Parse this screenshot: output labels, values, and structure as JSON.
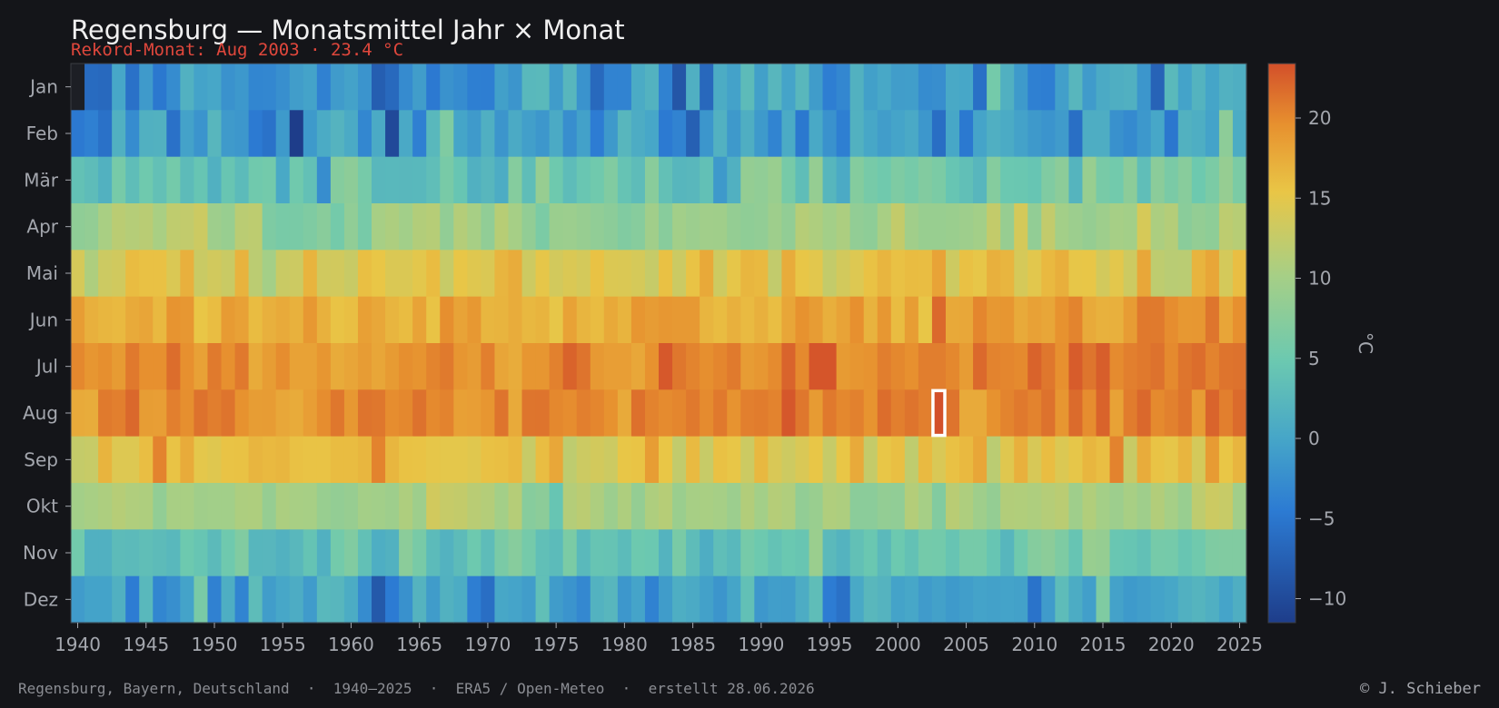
{
  "chart_data": {
    "type": "heatmap",
    "title": "Regensburg — Monatsmittel Jahr × Monat",
    "subtitle": "Rekord-Monat: Aug 2003 · 23.4 °C",
    "x_tick_labels": [
      "1940",
      "1945",
      "1950",
      "1955",
      "1960",
      "1965",
      "1970",
      "1975",
      "1980",
      "1985",
      "1990",
      "1995",
      "2000",
      "2005",
      "2010",
      "2015",
      "2020",
      "2025"
    ],
    "x_tick_years": [
      1940,
      1945,
      1950,
      1955,
      1960,
      1965,
      1970,
      1975,
      1980,
      1985,
      1990,
      1995,
      2000,
      2005,
      2010,
      2015,
      2020,
      2025
    ],
    "xlim": [
      1940,
      2025
    ],
    "years": [
      1940,
      1941,
      1942,
      1943,
      1944,
      1945,
      1946,
      1947,
      1948,
      1949,
      1950,
      1951,
      1952,
      1953,
      1954,
      1955,
      1956,
      1957,
      1958,
      1959,
      1960,
      1961,
      1962,
      1963,
      1964,
      1965,
      1966,
      1967,
      1968,
      1969,
      1970,
      1971,
      1972,
      1973,
      1974,
      1975,
      1976,
      1977,
      1978,
      1979,
      1980,
      1981,
      1982,
      1983,
      1984,
      1985,
      1986,
      1987,
      1988,
      1989,
      1990,
      1991,
      1992,
      1993,
      1994,
      1995,
      1996,
      1997,
      1998,
      1999,
      2000,
      2001,
      2002,
      2003,
      2004,
      2005,
      2006,
      2007,
      2008,
      2009,
      2010,
      2011,
      2012,
      2013,
      2014,
      2015,
      2016,
      2017,
      2018,
      2019,
      2020,
      2021,
      2022,
      2023,
      2024,
      2025
    ],
    "months": [
      "Jan",
      "Feb",
      "Mär",
      "Apr",
      "Mai",
      "Jun",
      "Jul",
      "Aug",
      "Sep",
      "Okt",
      "Nov",
      "Dez"
    ],
    "colorbar": {
      "min": -11.5,
      "max": 23.4,
      "ticks": [
        20,
        15,
        10,
        5,
        0,
        -5,
        -10
      ],
      "tick_labels": [
        "20",
        "15",
        "10",
        "5",
        "0",
        "−5",
        "−10"
      ],
      "label": "°C"
    },
    "highlight": {
      "year": 2003,
      "month": "Aug",
      "value": 23.4
    },
    "values": [
      [
        null,
        -6.3,
        -6.5,
        0.1,
        -5.6,
        -1.2,
        -4.9,
        -2.7,
        1.5,
        -0.3,
        0.1,
        -2.1,
        -1.5,
        -3.4,
        -3.3,
        -2.4,
        -0.9,
        -0.3,
        -3.9,
        -1.1,
        -0.4,
        -1.9,
        -7.8,
        -6.6,
        -2.8,
        -0.9,
        -4.7,
        -2.1,
        -2.7,
        -4.1,
        -4.2,
        -0.6,
        -1.8,
        2.5,
        2.6,
        -1.0,
        2.3,
        -2.0,
        -6.6,
        -3.7,
        -3.7,
        0.7,
        1.7,
        -3.8,
        -8.7,
        1.3,
        -6.7,
        0.8,
        -0.4,
        3.0,
        -0.6,
        2.3,
        -0.2,
        2.4,
        -1.0,
        -4.2,
        -3.3,
        1.6,
        -0.6,
        0.3,
        -0.9,
        -0.8,
        -2.7,
        -2.5,
        0.4,
        0.1,
        -5.8,
        5.6,
        1.4,
        -1.3,
        -4.0,
        -4.2,
        -0.7,
        2.3,
        -1.1,
        0.6,
        1.2,
        1.4,
        -1.7,
        -7.2,
        2.6,
        -0.3,
        1.8,
        -0.1,
        1.5,
        1.2
      ],
      [
        -4.7,
        -4.0,
        -5.6,
        1.4,
        -2.7,
        1.4,
        1.6,
        -5.6,
        -0.4,
        -1.9,
        2.3,
        -1.2,
        -1.6,
        -4.6,
        -5.5,
        -1.3,
        -11.5,
        -1.3,
        0.7,
        1.9,
        0.6,
        -3.3,
        0.6,
        -10.1,
        0.5,
        -4.0,
        2.5,
        6.6,
        -0.1,
        -1.2,
        1.3,
        -1.8,
        0.6,
        -0.7,
        -1.6,
        0.6,
        -2.5,
        -0.5,
        -4.4,
        -1.4,
        2.3,
        0.9,
        0.1,
        -4.6,
        -3.7,
        -7.6,
        -1.7,
        1.5,
        -1.4,
        1.2,
        -1.3,
        -3.6,
        0.7,
        -4.9,
        0.4,
        -2.1,
        -4.1,
        1.6,
        0.2,
        -0.9,
        -0.2,
        0.5,
        -1.6,
        -6.0,
        0.2,
        -4.8,
        -0.2,
        1.3,
        0.7,
        -0.4,
        -1.4,
        -1.9,
        -1.1,
        -5.9,
        1.0,
        1.0,
        -2.2,
        -2.9,
        -1.5,
        0.1,
        -5.0,
        1.6,
        1.1,
        -0.3,
        7.9,
        0.8
      ],
      [
        3.8,
        3.1,
        1.6,
        5.9,
        3.2,
        5.2,
        3.7,
        5.6,
        3.0,
        4.3,
        1.4,
        4.4,
        2.9,
        5.3,
        5.5,
        0.4,
        5.3,
        3.7,
        -2.6,
        7.2,
        7.9,
        5.8,
        2.4,
        2.5,
        2.4,
        2.5,
        3.3,
        6.0,
        4.3,
        1.4,
        2.3,
        0.9,
        7.2,
        3.2,
        8.8,
        5.1,
        3.1,
        4.5,
        5.3,
        6.8,
        4.1,
        3.1,
        7.5,
        3.7,
        2.2,
        2.4,
        3.6,
        -1.4,
        1.4,
        8.5,
        8.2,
        9.0,
        5.9,
        3.2,
        8.6,
        2.2,
        0.6,
        7.1,
        5.9,
        5.3,
        6.5,
        5.8,
        6.9,
        6.3,
        4.3,
        3.5,
        2.3,
        7.2,
        4.8,
        4.6,
        4.3,
        6.7,
        7.8,
        2.0,
        8.9,
        6.0,
        5.4,
        7.8,
        3.3,
        7.7,
        6.2,
        7.4,
        5.0,
        6.3,
        8.7,
        6.3
      ],
      [
        8.1,
        8.4,
        10.4,
        11.7,
        11.3,
        11.6,
        10.4,
        12.1,
        12.3,
        13.1,
        9.4,
        8.9,
        11.7,
        11.9,
        6.5,
        6.0,
        6.1,
        6.6,
        7.5,
        5.6,
        8.2,
        5.9,
        10.2,
        10.7,
        9.8,
        11.1,
        11.4,
        8.3,
        11.2,
        10.2,
        8.2,
        11.5,
        10.1,
        8.3,
        6.3,
        9.1,
        9.2,
        8.8,
        8.2,
        7.8,
        6.8,
        7.3,
        9.7,
        7.4,
        9.8,
        9.2,
        9.7,
        9.6,
        8.5,
        8.1,
        8.3,
        9.4,
        8.3,
        11.4,
        10.8,
        9.9,
        10.6,
        8.3,
        8.0,
        10.3,
        12.4,
        9.7,
        8.9,
        8.9,
        9.1,
        9.4,
        9.9,
        12.4,
        8.8,
        13.7,
        8.3,
        12.3,
        9.9,
        9.2,
        8.6,
        9.4,
        10.1,
        9.9,
        13.9,
        10.6,
        11.2,
        7.6,
        8.4,
        8.0,
        11.9,
        11.5
      ],
      [
        13.8,
        10.8,
        13.1,
        13.4,
        16.2,
        15.8,
        15.8,
        14.2,
        17.1,
        12.9,
        13.5,
        12.9,
        16.9,
        11.8,
        10.0,
        12.9,
        13.1,
        16.8,
        13.4,
        13.5,
        12.8,
        15.9,
        15.4,
        14.2,
        14.2,
        14.9,
        16.2,
        12.7,
        15.3,
        14.6,
        14.2,
        16.7,
        17.4,
        13.2,
        15.1,
        13.6,
        14.2,
        13.7,
        15.7,
        14.3,
        14.2,
        13.8,
        12.6,
        15.8,
        13.0,
        15.6,
        17.7,
        13.2,
        15.1,
        16.6,
        16.4,
        12.3,
        17.4,
        15.3,
        14.8,
        12.4,
        13.6,
        14.4,
        15.7,
        16.7,
        15.8,
        16.2,
        16.1,
        18.1,
        13.2,
        15.8,
        15.2,
        17.1,
        16.7,
        13.8,
        14.8,
        16.4,
        17.2,
        15.2,
        15.3,
        13.6,
        14.9,
        13.2,
        17.8,
        12.0,
        11.6,
        11.7,
        16.8,
        17.9,
        13.7,
        16.0
      ],
      [
        18.6,
        17.1,
        16.6,
        16.4,
        17.6,
        18.0,
        16.4,
        19.3,
        19.1,
        15.4,
        16.1,
        18.8,
        18.3,
        16.2,
        17.1,
        17.6,
        17.0,
        19.0,
        17.0,
        15.6,
        15.9,
        18.4,
        17.8,
        16.7,
        16.2,
        18.1,
        15.6,
        19.7,
        18.1,
        19.0,
        16.6,
        16.8,
        17.4,
        16.5,
        16.8,
        15.2,
        18.2,
        16.7,
        16.2,
        17.7,
        16.8,
        19.2,
        18.7,
        19.1,
        18.9,
        18.9,
        16.7,
        16.2,
        17.1,
        16.3,
        17.1,
        16.0,
        17.9,
        19.5,
        18.7,
        17.2,
        18.1,
        19.6,
        16.9,
        19.1,
        16.2,
        18.6,
        15.3,
        21.9,
        17.7,
        17.8,
        20.2,
        19.0,
        19.2,
        17.6,
        18.3,
        17.9,
        19.5,
        20.3,
        17.6,
        17.0,
        17.1,
        18.7,
        21.0,
        20.9,
        19.8,
        19.0,
        19.1,
        21.2,
        18.0,
        19.6
      ],
      [
        20.1,
        19.2,
        19.7,
        18.8,
        21.0,
        19.6,
        19.6,
        21.7,
        19.6,
        18.3,
        20.9,
        19.6,
        21.0,
        17.5,
        18.6,
        19.8,
        18.2,
        18.2,
        19.2,
        17.5,
        18.0,
        18.7,
        17.9,
        18.8,
        19.7,
        19.3,
        20.3,
        20.9,
        19.2,
        18.7,
        20.6,
        18.0,
        17.4,
        19.2,
        19.2,
        20.5,
        22.3,
        21.3,
        18.9,
        18.5,
        18.5,
        17.8,
        19.5,
        22.9,
        21.1,
        20.3,
        19.7,
        20.2,
        20.9,
        18.7,
        19.1,
        19.9,
        22.2,
        20.0,
        23.1,
        23.1,
        18.8,
        19.2,
        19.4,
        20.7,
        20.1,
        19.6,
        20.7,
        20.7,
        20.1,
        18.7,
        21.9,
        20.4,
        20.2,
        20.0,
        22.3,
        21.1,
        19.6,
        22.7,
        21.2,
        22.6,
        19.9,
        20.6,
        21.0,
        21.4,
        20.0,
        21.2,
        21.7,
        20.4,
        21.3,
        21.4
      ],
      [
        17.6,
        17.4,
        20.9,
        20.6,
        22.0,
        18.6,
        18.5,
        20.6,
        19.7,
        21.4,
        20.7,
        21.3,
        19.5,
        18.6,
        18.7,
        17.8,
        17.5,
        18.5,
        19.8,
        21.1,
        19.0,
        21.3,
        21.1,
        19.8,
        20.1,
        21.4,
        20.0,
        20.4,
        18.4,
        18.5,
        19.2,
        21.3,
        17.6,
        21.2,
        21.3,
        20.1,
        19.8,
        20.6,
        20.2,
        19.5,
        17.6,
        21.5,
        20.4,
        19.9,
        20.2,
        21.0,
        19.9,
        21.0,
        19.4,
        20.6,
        20.8,
        20.4,
        23.0,
        21.1,
        18.8,
        21.0,
        20.1,
        20.5,
        19.3,
        21.7,
        20.6,
        21.3,
        20.6,
        23.4,
        21.3,
        17.6,
        17.6,
        19.5,
        20.3,
        21.0,
        20.4,
        21.4,
        19.2,
        21.8,
        19.8,
        22.3,
        18.2,
        20.8,
        22.0,
        20.0,
        20.5,
        21.3,
        18.7,
        22.2,
        20.6,
        21.8
      ],
      [
        12.5,
        12.7,
        16.8,
        14.4,
        14.4,
        16.0,
        20.4,
        15.6,
        17.5,
        15.0,
        14.6,
        15.6,
        15.7,
        16.7,
        16.4,
        16.6,
        15.8,
        15.6,
        15.6,
        16.2,
        16.2,
        16.6,
        20.4,
        16.6,
        15.7,
        15.6,
        15.1,
        15.0,
        15.0,
        14.7,
        15.8,
        15.9,
        16.4,
        12.7,
        16.1,
        17.8,
        12.0,
        13.1,
        13.6,
        13.1,
        15.3,
        15.5,
        18.6,
        15.4,
        12.3,
        16.3,
        12.7,
        15.8,
        15.3,
        13.1,
        16.5,
        14.1,
        13.2,
        14.1,
        15.3,
        12.6,
        15.4,
        17.6,
        12.5,
        15.3,
        15.9,
        12.1,
        16.3,
        14.1,
        15.8,
        16.4,
        17.9,
        11.8,
        14.6,
        17.1,
        14.0,
        16.1,
        14.3,
        15.1,
        16.6,
        16.0,
        20.4,
        12.8,
        17.4,
        15.6,
        15.1,
        16.7,
        13.7,
        18.8,
        15.4,
        16.7
      ],
      [
        9.9,
        10.3,
        10.7,
        11.4,
        10.9,
        10.8,
        8.3,
        10.3,
        10.4,
        9.6,
        9.8,
        9.8,
        10.7,
        10.8,
        8.7,
        10.6,
        10.3,
        10.2,
        8.9,
        8.4,
        8.8,
        10.0,
        9.8,
        9.4,
        10.8,
        9.4,
        13.5,
        12.6,
        12.4,
        11.6,
        11.2,
        9.9,
        11.3,
        7.3,
        7.8,
        4.3,
        11.2,
        11.8,
        10.7,
        9.2,
        10.8,
        8.5,
        10.8,
        11.4,
        9.1,
        10.2,
        10.4,
        10.1,
        9.2,
        11.1,
        9.9,
        11.3,
        10.9,
        8.3,
        9.0,
        10.9,
        10.7,
        7.7,
        7.7,
        8.4,
        8.2,
        11.2,
        10.1,
        6.9,
        11.6,
        10.8,
        9.5,
        8.5,
        11.1,
        11.0,
        10.8,
        11.3,
        11.7,
        9.5,
        11.0,
        10.0,
        9.3,
        10.3,
        9.5,
        11.1,
        10.1,
        8.9,
        12.0,
        13.1,
        12.7,
        9.7
      ],
      [
        5.4,
        1.4,
        1.4,
        3.0,
        2.8,
        3.4,
        3.0,
        2.5,
        5.0,
        4.3,
        2.8,
        5.2,
        6.8,
        2.2,
        2.3,
        1.6,
        2.4,
        4.0,
        1.4,
        5.5,
        6.8,
        3.6,
        1.1,
        1.6,
        7.7,
        6.0,
        2.9,
        1.7,
        3.0,
        5.0,
        3.1,
        6.2,
        7.3,
        5.7,
        3.5,
        2.9,
        6.3,
        2.6,
        4.2,
        4.1,
        2.9,
        5.0,
        4.8,
        1.8,
        6.1,
        3.1,
        1.0,
        3.3,
        2.5,
        5.8,
        5.0,
        3.9,
        4.7,
        4.4,
        9.1,
        2.7,
        1.8,
        3.6,
        4.6,
        2.7,
        4.9,
        3.8,
        5.6,
        5.5,
        4.2,
        5.8,
        5.8,
        4.3,
        2.2,
        5.3,
        7.2,
        7.8,
        6.5,
        4.2,
        8.9,
        8.6,
        4.5,
        4.3,
        3.6,
        5.8,
        5.7,
        4.4,
        5.3,
        6.6,
        6.8,
        6.8
      ],
      [
        -1.1,
        -0.3,
        -0.3,
        1.4,
        -4.4,
        2.5,
        -3.4,
        -2.4,
        -0.3,
        6.1,
        -3.9,
        1.1,
        -3.6,
        3.1,
        -0.9,
        0.1,
        0.9,
        -1.1,
        2.5,
        2.3,
        0.8,
        -2.7,
        -8.4,
        -4.5,
        -2.2,
        1.9,
        -1.0,
        1.6,
        0.8,
        -4.2,
        -6.0,
        0.2,
        -0.2,
        -0.9,
        3.5,
        -1.0,
        -1.9,
        -3.1,
        1.7,
        2.3,
        -1.6,
        -0.2,
        -3.8,
        -1.0,
        1.1,
        0.6,
        -0.5,
        -1.8,
        -0.1,
        3.6,
        -1.6,
        -0.8,
        -0.9,
        0.9,
        3.2,
        -4.4,
        -5.7,
        0.4,
        2.4,
        1.9,
        -0.3,
        0.1,
        -1.1,
        -0.5,
        -1.3,
        -0.8,
        -0.3,
        -0.5,
        -0.3,
        -0.5,
        -5.4,
        -1.1,
        3.1,
        0.8,
        -0.7,
        6.6,
        -0.4,
        -1.3,
        -0.8,
        -0.3,
        0.2,
        1.4,
        2.0,
        1.3,
        -0.2,
        1.2
      ]
    ]
  },
  "footer": {
    "left": "Regensburg, Bayern, Deutschland  ·  1940–2025  ·  ERA5 / Open-Meteo  ·  erstellt 28.06.2026",
    "right": "© J. Schieber"
  }
}
